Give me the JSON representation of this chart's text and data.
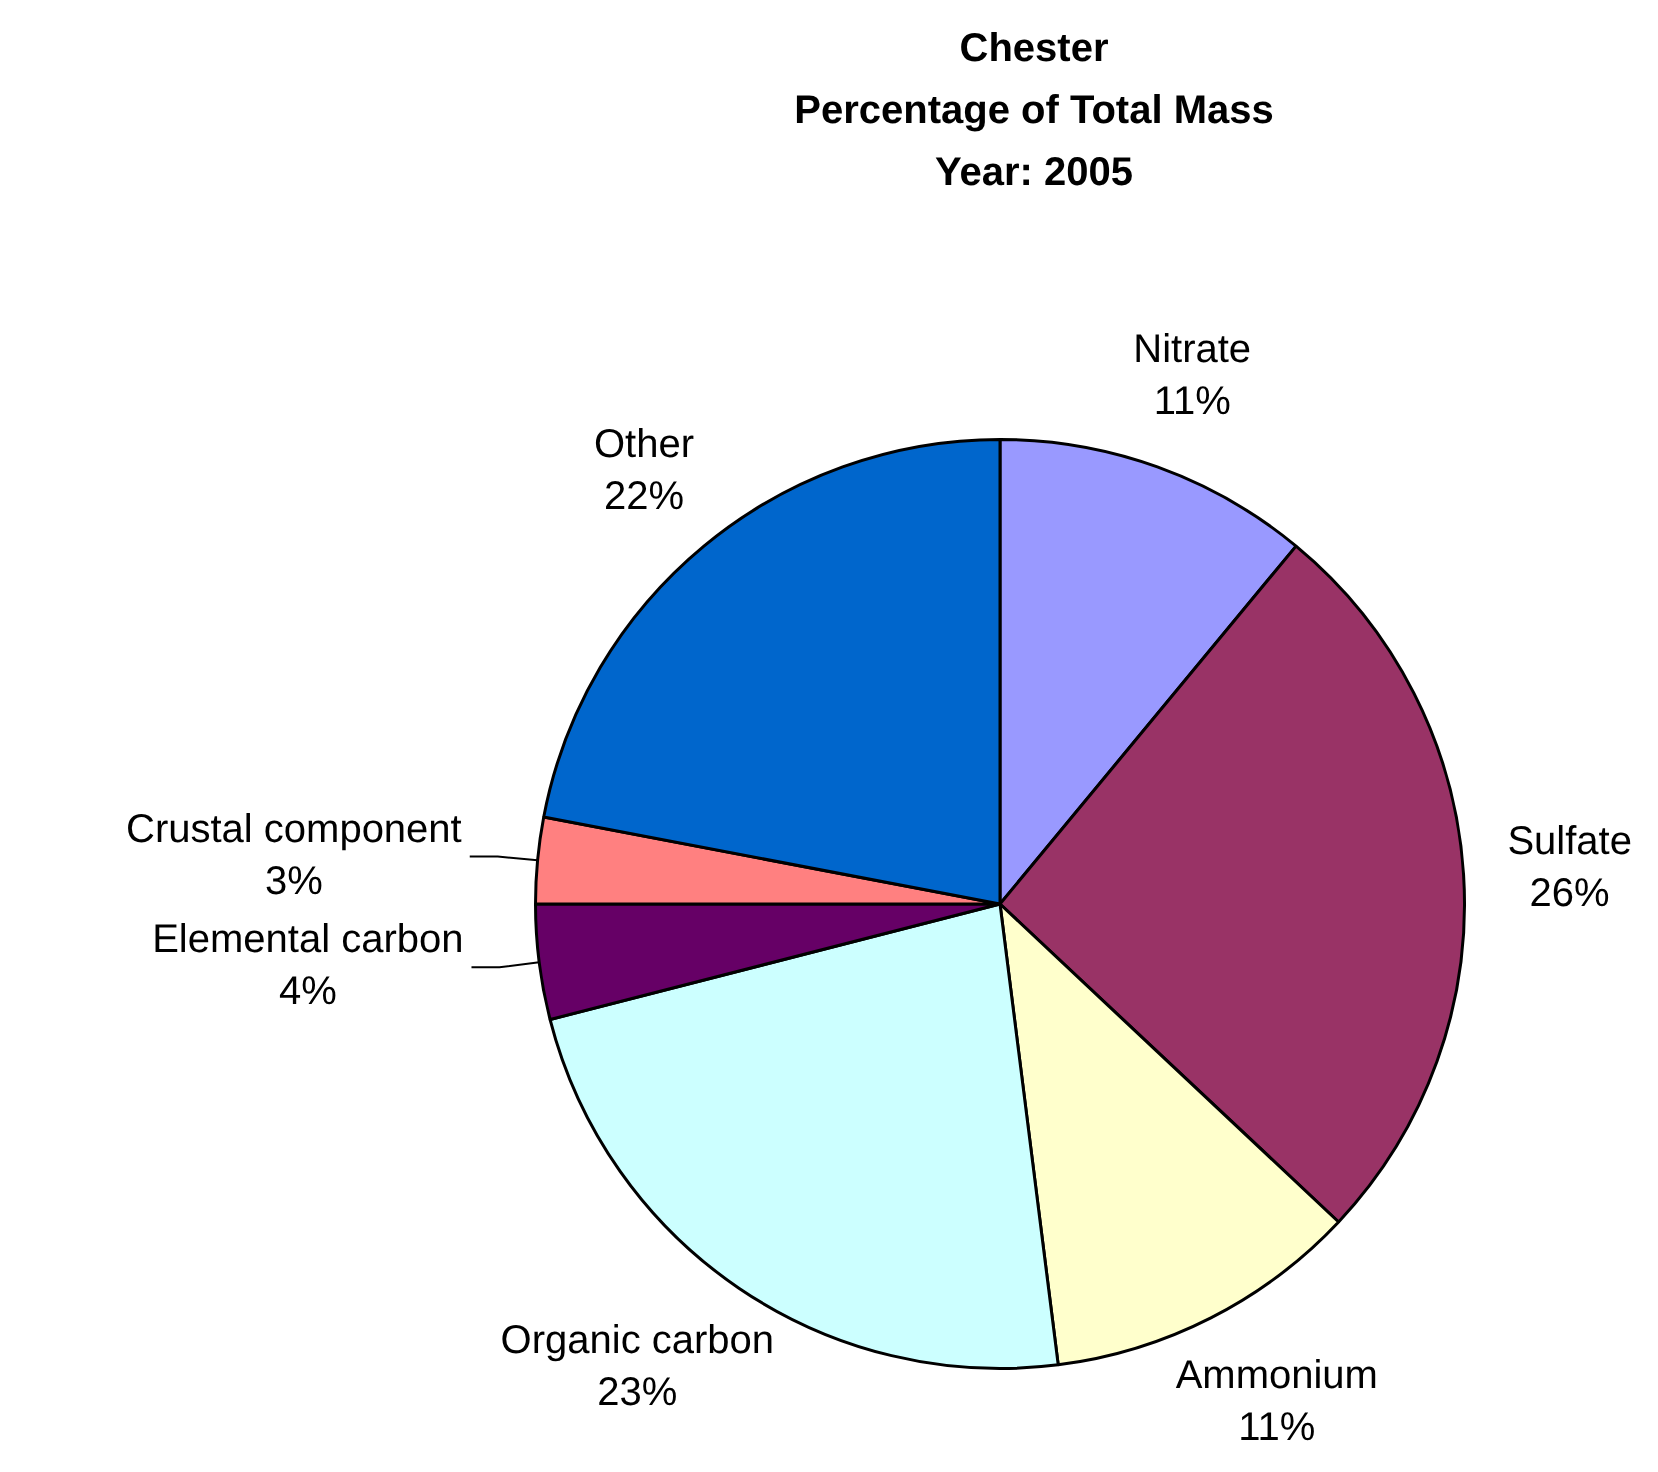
{
  "chart_data": {
    "type": "pie",
    "title": "Chester\nPercentage of Total Mass\nYear: 2005",
    "categories": [
      "Nitrate",
      "Sulfate",
      "Ammonium",
      "Organic carbon",
      "Elemental carbon",
      "Crustal component",
      "Other"
    ],
    "values": [
      11,
      26,
      11,
      23,
      4,
      3,
      22
    ],
    "colors": [
      "#9999ff",
      "#993366",
      "#ffffcc",
      "#ccffff",
      "#660066",
      "#ff8080",
      "#0066cc"
    ],
    "value_labels": [
      "11%",
      "26%",
      "11%",
      "23%",
      "4%",
      "3%",
      "22%"
    ],
    "legend": false
  }
}
